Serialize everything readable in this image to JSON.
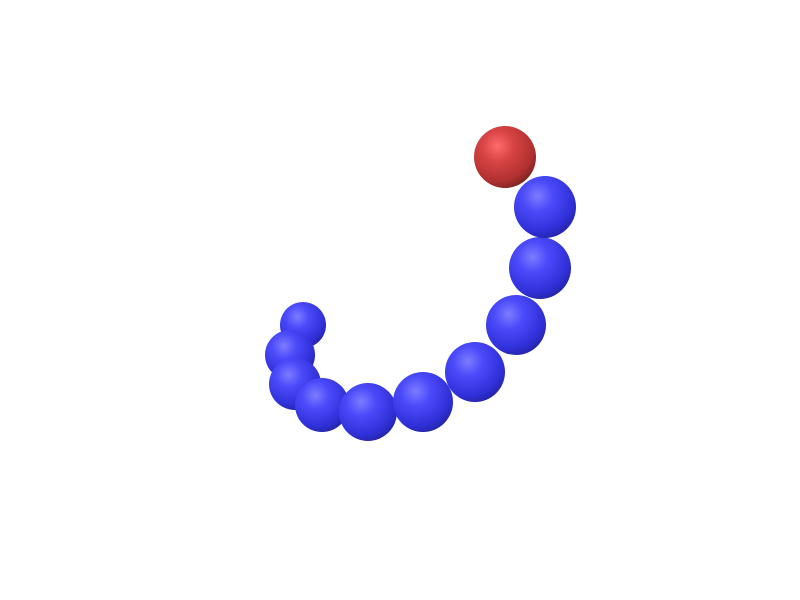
{
  "scene": {
    "background": "#ffffff",
    "spheres": [
      {
        "name": "red-sphere",
        "color": "#c43a3a"
      },
      {
        "name": "blue-sphere-1",
        "color": "#3b3bf0"
      },
      {
        "name": "blue-sphere-2",
        "color": "#3b3bf0"
      },
      {
        "name": "blue-sphere-3",
        "color": "#3b3bf0"
      },
      {
        "name": "blue-sphere-4",
        "color": "#3b3bf0"
      },
      {
        "name": "blue-sphere-5",
        "color": "#3b3bf0"
      },
      {
        "name": "blue-sphere-6",
        "color": "#3b3bf0"
      },
      {
        "name": "blue-sphere-7",
        "color": "#3b3bf0"
      },
      {
        "name": "blue-sphere-8",
        "color": "#3b3bf0"
      },
      {
        "name": "blue-sphere-9",
        "color": "#3b3bf0"
      },
      {
        "name": "blue-sphere-10",
        "color": "#3b3bf0"
      }
    ]
  }
}
